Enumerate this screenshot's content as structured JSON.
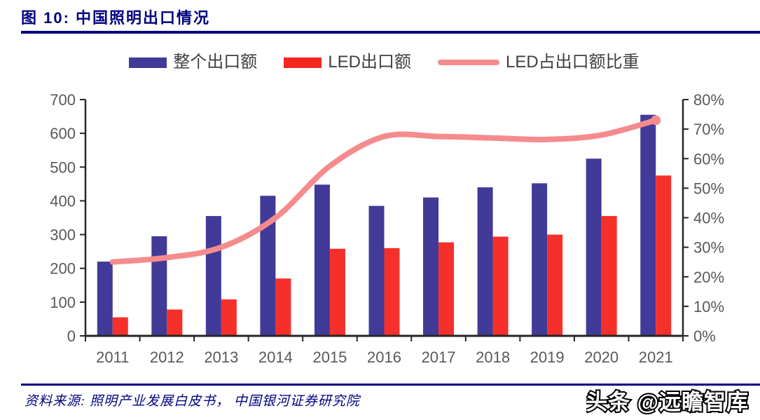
{
  "header": {
    "title": "图 10: 中国照明出口情况"
  },
  "legend": [
    {
      "label": "整个出口额",
      "swatch": "bar",
      "color": "#423A98"
    },
    {
      "label": "LED出口额",
      "swatch": "bar",
      "color": "#F2271F"
    },
    {
      "label": "LED占出口额比重",
      "swatch": "line",
      "color": "#F68B8D"
    }
  ],
  "chart_data": {
    "type": "bar",
    "title": "中国照明出口情况",
    "categories": [
      "2011",
      "2012",
      "2013",
      "2014",
      "2015",
      "2016",
      "2017",
      "2018",
      "2019",
      "2020",
      "2021"
    ],
    "series": [
      {
        "name": "整个出口额",
        "type": "bar",
        "axis": "left",
        "color": "#423A98",
        "values": [
          220,
          295,
          355,
          415,
          448,
          385,
          410,
          440,
          452,
          525,
          655
        ]
      },
      {
        "name": "LED出口额",
        "type": "bar",
        "axis": "left",
        "color": "#F5302A",
        "values": [
          55,
          78,
          108,
          170,
          258,
          260,
          277,
          294,
          300,
          355,
          475
        ]
      },
      {
        "name": "LED占出口额比重",
        "type": "line",
        "axis": "right",
        "color": "#F68B8D",
        "values": [
          25,
          26.5,
          30,
          40,
          57.5,
          67.5,
          67.5,
          67,
          66.5,
          68,
          73
        ]
      }
    ],
    "left_axis": {
      "min": 0,
      "max": 700,
      "step": 100,
      "suffix": ""
    },
    "right_axis": {
      "min": 0,
      "max": 80,
      "step": 10,
      "suffix": "%"
    },
    "grid": false,
    "legend_position": "top"
  },
  "footer": {
    "source": "资料来源: 照明产业发展白皮书， 中国银河证券研究院",
    "watermark": "头条 @远瞻智库"
  },
  "colors": {
    "navy": "#000080",
    "axis_line": "#262626",
    "axis_label": "#595959",
    "legend_text": "#3F3F3F",
    "background": "#FFFFFF"
  }
}
